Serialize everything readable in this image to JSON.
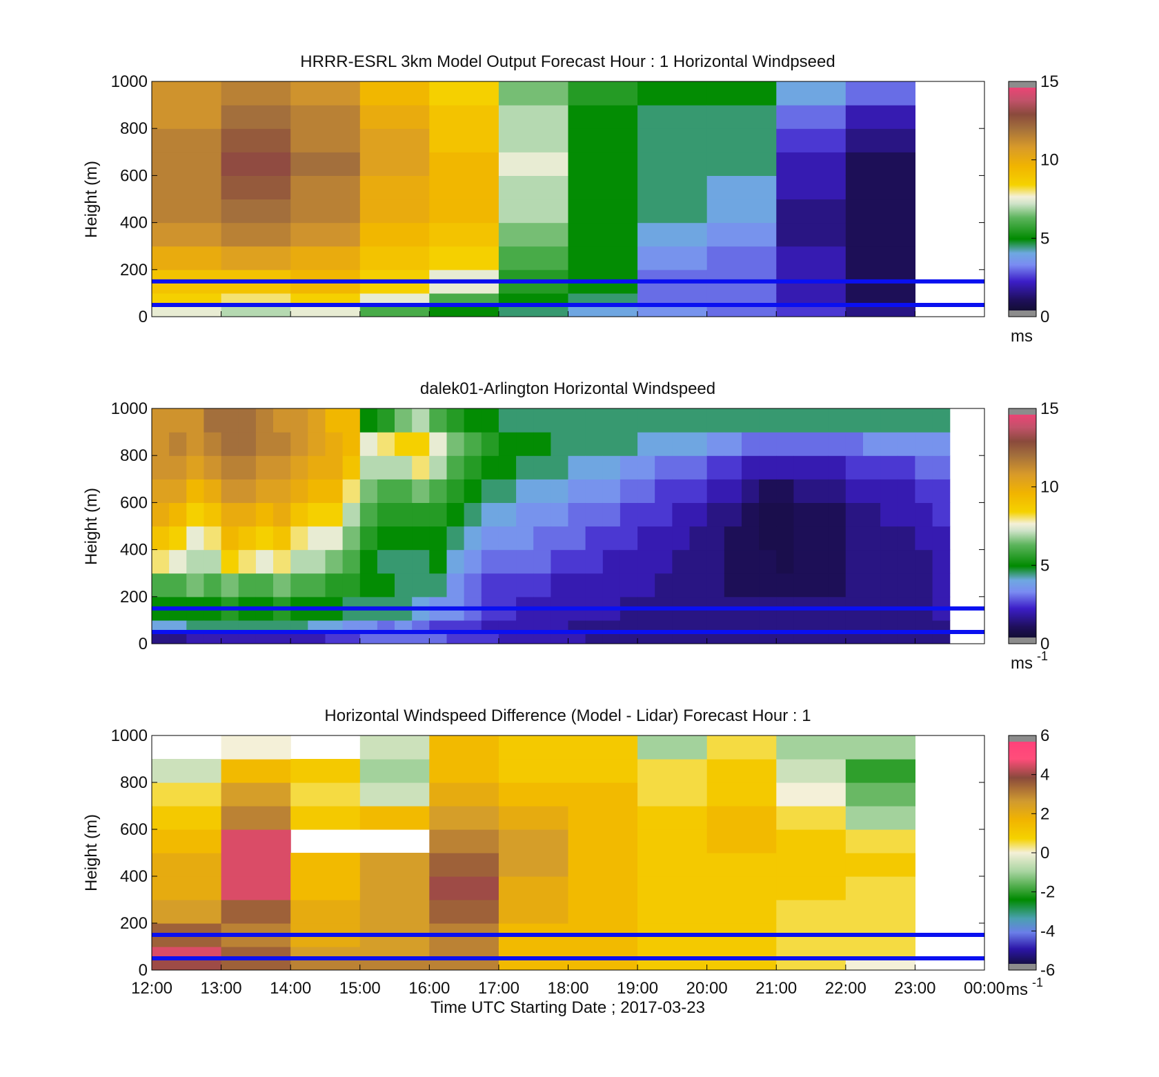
{
  "figure": {
    "xlabel": "Time UTC  Starting Date ; 2017-03-23",
    "x_tick_labels": [
      "12:00",
      "13:00",
      "14:00",
      "15:00",
      "16:00",
      "17:00",
      "18:00",
      "19:00",
      "20:00",
      "21:00",
      "22:00",
      "23:00",
      "00:00"
    ],
    "overlay_line_color": "#0a10f0",
    "overlay_line_heights_m": [
      50,
      150
    ]
  },
  "chart_data": [
    {
      "type": "heatmap",
      "title": "HRRR-ESRL 3km Model Output   Forecast Hour : 1 Horizontal Windpseed",
      "xlabel": "",
      "ylabel": "Height (m)",
      "x_range_hours_utc": [
        12,
        24
      ],
      "ylim": [
        0,
        1000
      ],
      "y_ticks": [
        0,
        200,
        400,
        600,
        800,
        1000
      ],
      "colorbar": {
        "min": 0,
        "max": 15,
        "ticks": [
          0,
          5,
          10,
          15
        ],
        "unit": "ms"
      },
      "time_step_hours": 1,
      "height_levels_m": [
        25,
        75,
        150,
        250,
        350,
        450,
        550,
        650,
        750,
        850,
        950
      ],
      "values": [
        [
          7.5,
          8.5,
          9.0,
          10.0,
          11.0,
          11.5,
          11.5,
          11.5,
          11.5,
          11.0,
          11.0
        ],
        [
          7.0,
          8.0,
          9.0,
          10.5,
          11.5,
          12.0,
          12.5,
          13.0,
          12.5,
          12.0,
          11.5
        ],
        [
          7.5,
          8.5,
          9.5,
          10.0,
          11.0,
          11.5,
          11.5,
          12.0,
          11.5,
          11.5,
          11.0
        ],
        [
          6.0,
          7.5,
          8.5,
          9.0,
          9.5,
          10.0,
          10.0,
          10.5,
          10.5,
          10.0,
          9.5
        ],
        [
          5.0,
          6.0,
          7.5,
          8.5,
          9.0,
          9.5,
          9.5,
          9.5,
          9.0,
          9.0,
          8.5
        ],
        [
          4.5,
          5.0,
          5.5,
          6.0,
          6.5,
          7.0,
          7.0,
          7.5,
          7.0,
          7.0,
          6.5
        ],
        [
          4.0,
          4.5,
          5.0,
          5.0,
          5.0,
          5.0,
          5.0,
          5.0,
          5.0,
          5.0,
          5.5
        ],
        [
          3.5,
          3.0,
          3.0,
          3.5,
          4.0,
          4.5,
          4.5,
          4.5,
          4.5,
          4.5,
          5.0
        ],
        [
          3.0,
          3.0,
          3.0,
          3.0,
          3.5,
          4.0,
          4.0,
          4.5,
          4.5,
          4.5,
          5.0
        ],
        [
          2.5,
          2.0,
          2.0,
          2.0,
          1.5,
          1.5,
          2.0,
          2.0,
          2.5,
          3.0,
          4.0
        ],
        [
          1.5,
          1.0,
          1.0,
          1.0,
          1.0,
          1.0,
          1.0,
          1.0,
          1.5,
          2.0,
          3.0
        ]
      ]
    },
    {
      "type": "heatmap",
      "title": "dalek01-Arlington  Horizontal Windspeed",
      "xlabel": "",
      "ylabel": "Height (m)",
      "x_range_hours_utc": [
        12,
        24
      ],
      "ylim": [
        0,
        1000
      ],
      "y_ticks": [
        0,
        200,
        400,
        600,
        800,
        1000
      ],
      "colorbar": {
        "min": 0,
        "max": 15,
        "ticks": [
          0,
          5,
          10,
          15
        ],
        "unit": "ms",
        "unit_exponent": "-1"
      },
      "time_step_hours": 0.25,
      "description_profile": "values per 15-min column at heights 25,75,150,250,350,450,550,650,750,850,950 m",
      "height_levels_m": [
        25,
        75,
        150,
        250,
        350,
        450,
        550,
        650,
        750,
        850,
        950
      ],
      "values": [
        [
          1.5,
          4.0,
          5.0,
          6.0,
          8.0,
          9.0,
          10.0,
          10.5,
          11.0,
          11.0,
          11.0
        ],
        [
          1.5,
          4.0,
          5.0,
          6.0,
          7.5,
          8.5,
          9.5,
          10.5,
          11.0,
          11.5,
          11.0
        ],
        [
          2.0,
          4.5,
          5.0,
          6.5,
          7.0,
          7.5,
          8.5,
          9.5,
          10.5,
          11.0,
          11.0
        ],
        [
          2.0,
          4.5,
          5.0,
          6.0,
          7.0,
          8.0,
          9.0,
          10.0,
          11.0,
          11.5,
          12.0
        ],
        [
          2.0,
          4.5,
          5.5,
          6.5,
          8.5,
          9.5,
          10.0,
          11.0,
          11.5,
          12.0,
          12.0
        ],
        [
          2.0,
          4.5,
          5.0,
          6.0,
          8.0,
          9.0,
          10.0,
          11.0,
          11.5,
          12.0,
          12.0
        ],
        [
          2.0,
          4.5,
          5.0,
          6.0,
          7.5,
          8.5,
          9.5,
          10.5,
          11.0,
          11.5,
          11.5
        ],
        [
          2.0,
          4.5,
          5.5,
          6.5,
          8.0,
          9.0,
          10.0,
          10.5,
          11.0,
          11.5,
          11.0
        ],
        [
          2.0,
          4.5,
          5.0,
          6.0,
          7.0,
          8.0,
          9.0,
          10.0,
          10.5,
          11.0,
          11.0
        ],
        [
          2.0,
          4.0,
          5.0,
          6.0,
          7.0,
          7.5,
          8.5,
          9.5,
          10.0,
          10.5,
          10.5
        ],
        [
          2.5,
          4.0,
          5.0,
          5.5,
          6.5,
          7.5,
          8.5,
          9.5,
          10.0,
          10.0,
          9.5
        ],
        [
          2.5,
          3.5,
          4.5,
          5.5,
          6.0,
          6.5,
          7.0,
          8.0,
          9.0,
          9.5,
          9.5
        ],
        [
          3.0,
          3.5,
          4.5,
          5.0,
          5.0,
          5.5,
          6.0,
          6.5,
          7.0,
          7.5,
          5.0
        ],
        [
          3.0,
          3.0,
          4.5,
          5.0,
          4.5,
          5.0,
          5.5,
          6.0,
          7.0,
          8.0,
          5.5
        ],
        [
          3.0,
          3.5,
          4.5,
          4.5,
          4.5,
          5.0,
          5.5,
          6.0,
          7.0,
          8.5,
          6.5
        ],
        [
          3.0,
          3.0,
          4.0,
          4.5,
          4.5,
          5.0,
          5.5,
          6.5,
          8.0,
          8.5,
          7.0
        ],
        [
          3.0,
          2.5,
          3.5,
          4.5,
          5.0,
          5.0,
          5.5,
          6.0,
          7.0,
          7.5,
          6.0
        ],
        [
          2.5,
          2.5,
          3.5,
          3.5,
          4.0,
          4.5,
          5.0,
          5.5,
          6.0,
          6.5,
          5.5
        ],
        [
          2.5,
          2.5,
          3.0,
          3.0,
          3.5,
          4.0,
          4.5,
          5.0,
          5.5,
          6.0,
          5.0
        ],
        [
          2.5,
          2.0,
          2.5,
          2.5,
          3.0,
          3.5,
          4.0,
          4.5,
          5.0,
          5.5,
          5.0
        ],
        [
          2.0,
          2.0,
          2.5,
          2.5,
          3.0,
          3.5,
          4.0,
          4.5,
          5.0,
          5.0,
          4.5
        ],
        [
          2.0,
          2.0,
          2.0,
          2.5,
          3.0,
          3.5,
          3.5,
          4.0,
          4.5,
          5.0,
          4.5
        ],
        [
          2.0,
          2.0,
          2.0,
          2.5,
          3.0,
          3.0,
          3.5,
          4.0,
          4.5,
          5.0,
          4.5
        ],
        [
          2.0,
          2.0,
          2.0,
          2.0,
          2.5,
          3.0,
          3.5,
          4.0,
          4.5,
          4.5,
          4.5
        ],
        [
          2.0,
          1.5,
          2.0,
          2.0,
          2.5,
          3.0,
          3.0,
          3.5,
          4.0,
          4.5,
          4.5
        ],
        [
          1.5,
          1.5,
          2.0,
          2.0,
          2.5,
          2.5,
          3.0,
          3.5,
          4.0,
          4.5,
          4.5
        ],
        [
          1.5,
          1.5,
          2.0,
          2.0,
          2.0,
          2.5,
          3.0,
          3.5,
          4.0,
          4.5,
          4.5
        ],
        [
          1.5,
          1.5,
          1.5,
          2.0,
          2.0,
          2.5,
          2.5,
          3.0,
          3.5,
          4.5,
          4.5
        ],
        [
          1.5,
          1.5,
          1.5,
          2.0,
          2.0,
          2.0,
          2.5,
          3.0,
          3.5,
          4.0,
          4.5
        ],
        [
          1.5,
          1.5,
          1.5,
          1.5,
          2.0,
          2.0,
          2.5,
          2.5,
          3.0,
          4.0,
          4.5
        ],
        [
          1.5,
          1.5,
          1.5,
          1.5,
          1.5,
          2.0,
          2.0,
          2.5,
          3.0,
          4.0,
          4.5
        ],
        [
          1.5,
          1.5,
          1.5,
          1.5,
          1.5,
          1.5,
          2.0,
          2.5,
          3.0,
          4.0,
          4.5
        ],
        [
          1.5,
          1.5,
          1.5,
          1.5,
          1.5,
          1.5,
          1.5,
          2.0,
          2.5,
          3.5,
          4.5
        ],
        [
          1.5,
          1.5,
          1.5,
          1.0,
          1.0,
          1.0,
          1.5,
          2.0,
          2.5,
          3.5,
          4.5
        ],
        [
          1.5,
          1.5,
          1.5,
          1.0,
          1.0,
          1.0,
          1.0,
          1.5,
          2.0,
          3.0,
          4.5
        ],
        [
          1.5,
          1.5,
          1.5,
          1.0,
          1.0,
          0.8,
          0.8,
          1.0,
          2.0,
          3.0,
          4.5
        ],
        [
          1.5,
          1.5,
          1.5,
          1.0,
          0.8,
          0.8,
          0.8,
          1.0,
          2.0,
          3.0,
          4.5
        ],
        [
          1.5,
          1.5,
          1.5,
          1.0,
          1.0,
          1.0,
          1.0,
          1.5,
          2.0,
          3.0,
          4.5
        ],
        [
          1.5,
          1.5,
          1.5,
          1.0,
          1.0,
          1.0,
          1.0,
          1.5,
          2.0,
          3.0,
          4.5
        ],
        [
          1.5,
          1.5,
          1.5,
          1.0,
          1.0,
          1.0,
          1.0,
          1.5,
          2.0,
          3.0,
          4.5
        ],
        [
          1.5,
          1.5,
          1.5,
          1.5,
          1.5,
          1.5,
          1.5,
          2.0,
          2.5,
          3.0,
          4.5
        ],
        [
          1.5,
          1.5,
          1.5,
          1.5,
          1.5,
          1.5,
          1.5,
          2.0,
          2.5,
          3.5,
          4.5
        ],
        [
          1.5,
          1.5,
          1.5,
          1.5,
          1.5,
          1.5,
          2.0,
          2.0,
          2.5,
          3.5,
          4.5
        ],
        [
          1.5,
          1.5,
          1.5,
          1.5,
          1.5,
          1.5,
          2.0,
          2.0,
          2.5,
          3.5,
          4.5
        ],
        [
          1.5,
          1.5,
          1.5,
          1.5,
          1.5,
          2.0,
          2.0,
          2.5,
          3.0,
          3.5,
          4.5
        ],
        [
          1.5,
          1.5,
          2.0,
          2.0,
          2.0,
          2.0,
          2.5,
          2.5,
          3.0,
          3.5,
          4.5
        ]
      ]
    },
    {
      "type": "heatmap",
      "title": "Horizontal Windspeed Difference (Model - Lidar) Forecast Hour : 1",
      "xlabel": "Time UTC  Starting Date ; 2017-03-23",
      "ylabel": "Height (m)",
      "x_range_hours_utc": [
        12,
        24
      ],
      "ylim": [
        0,
        1000
      ],
      "y_ticks": [
        0,
        200,
        400,
        600,
        800,
        1000
      ],
      "colorbar": {
        "min": -6,
        "max": 6,
        "ticks": [
          -6,
          -4,
          -2,
          0,
          2,
          4,
          6
        ],
        "unit": "ms",
        "unit_exponent": "-1"
      },
      "time_step_hours": 1,
      "height_levels_m": [
        25,
        75,
        150,
        250,
        350,
        450,
        550,
        650,
        750,
        850,
        950
      ],
      "values": [
        [
          4.0,
          4.5,
          3.5,
          2.5,
          2.0,
          2.0,
          1.5,
          1.0,
          0.5,
          -0.5,
          null
        ],
        [
          3.5,
          3.5,
          3.0,
          3.5,
          4.5,
          4.5,
          4.5,
          3.0,
          2.5,
          1.5,
          0.0
        ],
        [
          3.0,
          2.5,
          2.0,
          2.0,
          1.5,
          1.5,
          null,
          1.0,
          0.5,
          1.0,
          null
        ],
        [
          3.0,
          2.5,
          2.5,
          2.5,
          2.5,
          2.5,
          null,
          1.5,
          -0.5,
          -1.0,
          -0.5
        ],
        [
          3.0,
          3.0,
          3.0,
          3.5,
          4.0,
          3.5,
          3.0,
          2.5,
          2.0,
          1.5,
          1.5
        ],
        [
          1.5,
          1.5,
          1.5,
          2.0,
          2.0,
          2.5,
          2.5,
          2.0,
          1.5,
          1.0,
          1.0
        ],
        [
          1.5,
          1.5,
          1.5,
          1.5,
          1.5,
          1.5,
          1.5,
          1.5,
          1.5,
          1.0,
          1.0
        ],
        [
          1.0,
          1.0,
          1.0,
          1.0,
          1.0,
          1.0,
          1.0,
          1.0,
          0.5,
          0.5,
          -1.0
        ],
        [
          1.0,
          1.0,
          1.0,
          1.0,
          1.0,
          1.0,
          1.5,
          1.5,
          1.0,
          1.0,
          0.5
        ],
        [
          0.5,
          0.5,
          0.5,
          0.5,
          1.0,
          1.0,
          1.0,
          0.5,
          0.0,
          -0.5,
          -1.0
        ],
        [
          0.0,
          0.5,
          0.5,
          0.5,
          0.5,
          1.0,
          0.5,
          -1.0,
          -1.5,
          -2.0,
          -1.0
        ]
      ]
    }
  ]
}
